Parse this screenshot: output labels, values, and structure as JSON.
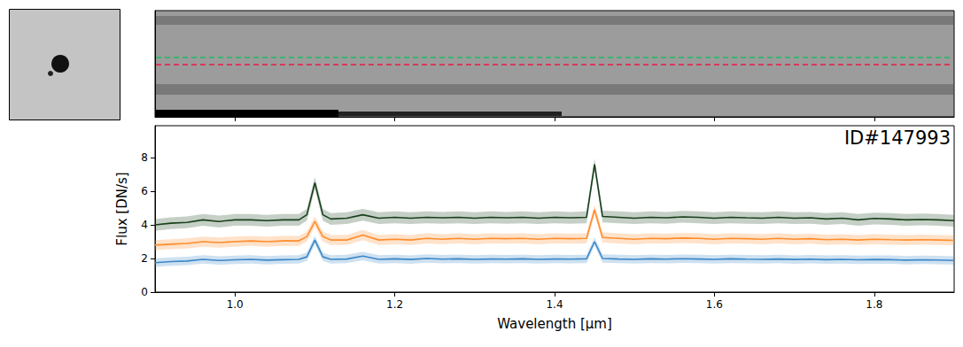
{
  "chart_data": {
    "type": "line",
    "annotation": "ID#147993",
    "x_label": "Wavelength [μm]",
    "y_label": "Flux [DN/s]",
    "xlim": [
      0.9,
      1.9
    ],
    "xticks": [
      {
        "value": 1.0,
        "label": "1.0"
      },
      1.2,
      1.4,
      1.6,
      1.8
    ],
    "ylim": [
      0,
      9.9
    ],
    "yticks": [
      0,
      2,
      4,
      6,
      8
    ],
    "grid": false,
    "x": [
      0.9,
      0.92,
      0.94,
      0.96,
      0.98,
      1.0,
      1.02,
      1.04,
      1.06,
      1.08,
      1.09,
      1.1,
      1.11,
      1.12,
      1.14,
      1.16,
      1.18,
      1.2,
      1.22,
      1.24,
      1.26,
      1.28,
      1.3,
      1.32,
      1.34,
      1.36,
      1.38,
      1.4,
      1.42,
      1.44,
      1.45,
      1.46,
      1.48,
      1.5,
      1.52,
      1.54,
      1.56,
      1.58,
      1.6,
      1.62,
      1.64,
      1.66,
      1.68,
      1.7,
      1.72,
      1.74,
      1.76,
      1.78,
      1.8,
      1.82,
      1.84,
      1.86,
      1.88,
      1.9
    ],
    "series": [
      {
        "color": "#17401a",
        "error": 0.35,
        "values": [
          4.0,
          4.1,
          4.15,
          4.3,
          4.2,
          4.3,
          4.3,
          4.25,
          4.3,
          4.3,
          4.6,
          6.5,
          4.6,
          4.35,
          4.4,
          4.6,
          4.4,
          4.45,
          4.4,
          4.45,
          4.42,
          4.45,
          4.4,
          4.45,
          4.42,
          4.45,
          4.4,
          4.45,
          4.42,
          4.45,
          7.6,
          4.5,
          4.45,
          4.4,
          4.45,
          4.42,
          4.48,
          4.45,
          4.4,
          4.45,
          4.42,
          4.4,
          4.45,
          4.4,
          4.42,
          4.35,
          4.4,
          4.3,
          4.38,
          4.35,
          4.3,
          4.32,
          4.3,
          4.25
        ]
      },
      {
        "color": "#ff8c2a",
        "error": 0.3,
        "values": [
          2.8,
          2.85,
          2.9,
          3.0,
          2.95,
          3.0,
          3.05,
          3.0,
          3.05,
          3.05,
          3.3,
          4.2,
          3.3,
          3.1,
          3.1,
          3.4,
          3.1,
          3.15,
          3.1,
          3.2,
          3.15,
          3.2,
          3.15,
          3.2,
          3.18,
          3.2,
          3.15,
          3.2,
          3.18,
          3.2,
          4.9,
          3.25,
          3.2,
          3.15,
          3.2,
          3.18,
          3.22,
          3.2,
          3.15,
          3.2,
          3.18,
          3.15,
          3.2,
          3.15,
          3.18,
          3.12,
          3.15,
          3.1,
          3.15,
          3.12,
          3.1,
          3.12,
          3.1,
          3.08
        ]
      },
      {
        "color": "#3a87c8",
        "error": 0.25,
        "values": [
          1.75,
          1.82,
          1.85,
          1.95,
          1.88,
          1.92,
          1.95,
          1.9,
          1.93,
          1.95,
          2.1,
          3.1,
          2.1,
          1.95,
          1.97,
          2.15,
          1.95,
          1.98,
          1.94,
          2.0,
          1.96,
          1.98,
          1.95,
          1.97,
          1.96,
          1.98,
          1.95,
          1.97,
          1.96,
          1.98,
          3.0,
          2.0,
          1.97,
          1.95,
          1.98,
          1.96,
          1.99,
          1.97,
          1.95,
          1.98,
          1.96,
          1.95,
          1.97,
          1.94,
          1.96,
          1.93,
          1.95,
          1.92,
          1.94,
          1.93,
          1.9,
          1.92,
          1.91,
          1.88
        ]
      }
    ]
  }
}
